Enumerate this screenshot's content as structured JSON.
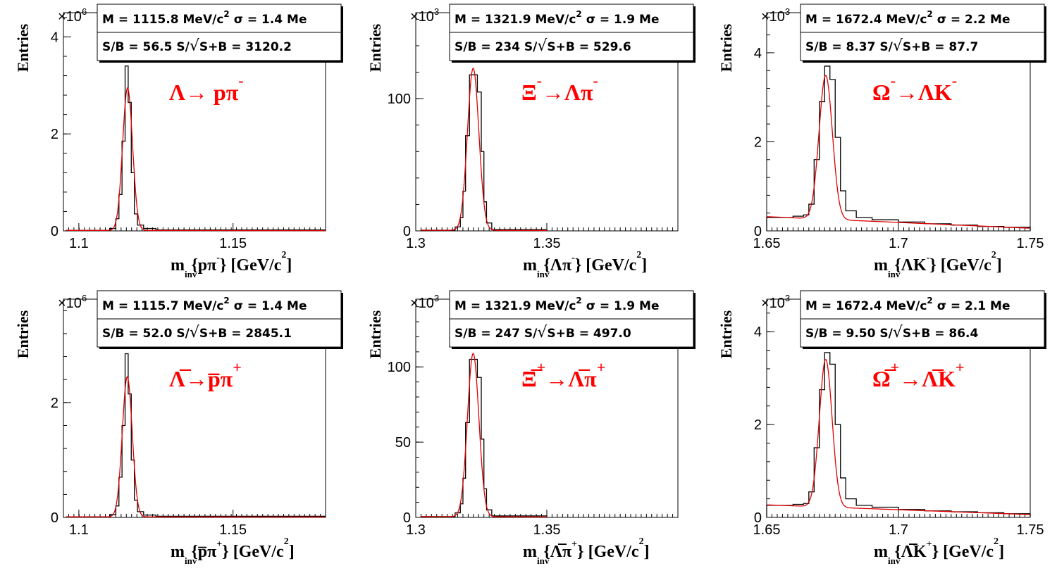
{
  "chart_data": [
    {
      "type": "histogram",
      "ylabel": "Entries",
      "y_multiplier": "×10",
      "y_exponent": "6",
      "xlabel": {
        "main": "m",
        "sub": "inv",
        "body": "{pπ",
        "sup": "-",
        "tail": "} [GeV/c",
        "unit_sup": "2",
        "tail2": "]"
      },
      "title": {
        "main": "Λ→ pπ",
        "sup": "-"
      },
      "stats": {
        "line1_a": "M = 1115.8 MeV/c",
        "line1_sup": "2",
        "line1_b": " σ = 1.4 Me",
        "line2_a": "S/B = 56.5   S/",
        "line2_b": "S+B = 3120.2"
      },
      "xlim": [
        1.095,
        1.18
      ],
      "ylim": [
        0,
        4.5
      ],
      "xticks": [
        1.1,
        1.15
      ],
      "xtick_labels": [
        "1.1",
        "1.15"
      ],
      "yticks": [
        0,
        2,
        4
      ],
      "ytick_labels": [
        "0",
        "2",
        "4"
      ],
      "peak": 1.1158,
      "sigma": 0.0014,
      "hist_peak": 3.4,
      "fit_peak": 2.95,
      "background": [
        0.01,
        0.005
      ],
      "hist_edges": [
        1.096,
        1.11,
        1.112,
        1.113,
        1.114,
        1.115,
        1.116,
        1.117,
        1.118,
        1.119,
        1.121,
        1.125,
        1.18
      ],
      "hist_values": [
        0.01,
        0.05,
        0.25,
        0.75,
        1.85,
        3.4,
        2.65,
        1.2,
        0.35,
        0.12,
        0.05,
        0.02
      ]
    },
    {
      "type": "histogram",
      "ylabel": "Entries",
      "y_multiplier": "×10",
      "y_exponent": "3",
      "xlabel": {
        "main": "m",
        "sub": "inv",
        "body": "{Λπ",
        "sup": "-",
        "tail": "} [GeV/c",
        "unit_sup": "2",
        "tail2": "]"
      },
      "title": {
        "main": "Ξ",
        "sup": "-",
        "main2": "→Λπ",
        "sup2": "-"
      },
      "stats": {
        "line1_a": "M = 1321.9 MeV/c",
        "line1_sup": "2",
        "line1_b": " σ = 1.9 Me",
        "line2_a": "S/B =  234   S/",
        "line2_b": "S+B = 529.6"
      },
      "xlim": [
        1.3,
        1.4
      ],
      "ylim": [
        0,
        165
      ],
      "xticks": [
        1.3,
        1.35
      ],
      "xtick_labels": [
        "1.3",
        "1.35"
      ],
      "yticks": [
        0,
        100
      ],
      "ytick_labels": [
        "0",
        "100"
      ],
      "peak": 1.3219,
      "sigma": 0.0019,
      "hist_peak": 118,
      "fit_peak": 123,
      "background": [
        0.5,
        0.3
      ],
      "hist_edges": [
        1.302,
        1.315,
        1.317,
        1.318,
        1.319,
        1.3205,
        1.322,
        1.3235,
        1.325,
        1.326,
        1.327,
        1.329,
        1.35
      ],
      "hist_values": [
        0.5,
        3,
        10,
        30,
        72,
        118,
        118,
        105,
        60,
        22,
        6,
        1
      ]
    },
    {
      "type": "histogram",
      "ylabel": "Entries",
      "y_multiplier": "×10",
      "y_exponent": "3",
      "xlabel": {
        "main": "m",
        "sub": "inv",
        "body": "{ΛK",
        "sup": "-",
        "tail": "} [GeV/c",
        "unit_sup": "2",
        "tail2": "]"
      },
      "title": {
        "main": "Ω",
        "sup": "-",
        "main2": "→ΛK",
        "sup2": "-"
      },
      "stats": {
        "line1_a": "M = 1672.4 MeV/c",
        "line1_sup": "2",
        "line1_b": " σ = 2.2 Me",
        "line2_a": "S/B = 8.37   S/",
        "line2_b": "S+B = 87.7"
      },
      "xlim": [
        1.65,
        1.75
      ],
      "ylim": [
        0,
        4.9
      ],
      "xticks": [
        1.65,
        1.7,
        1.75
      ],
      "xtick_labels": [
        "1.65",
        "1.7",
        "1.75"
      ],
      "yticks": [
        0,
        2,
        4
      ],
      "ytick_labels": [
        "0",
        "2",
        "4"
      ],
      "peak": 1.6724,
      "sigma": 0.0022,
      "hist_peak": 3.7,
      "fit_peak": 3.55,
      "background": [
        0.32,
        0.06
      ],
      "hist_edges": [
        1.65,
        1.66,
        1.664,
        1.666,
        1.668,
        1.67,
        1.672,
        1.674,
        1.676,
        1.678,
        1.68,
        1.684,
        1.69,
        1.7,
        1.71,
        1.72,
        1.73,
        1.74,
        1.75
      ],
      "hist_values": [
        0.3,
        0.33,
        0.36,
        0.6,
        1.6,
        2.9,
        3.7,
        3.4,
        2.1,
        0.9,
        0.45,
        0.3,
        0.25,
        0.2,
        0.16,
        0.13,
        0.1,
        0.08
      ]
    },
    {
      "type": "histogram",
      "ylabel": "Entries",
      "y_multiplier": "×10",
      "y_exponent": "6",
      "xlabel": {
        "main": "m",
        "sub": "inv",
        "body": "{p̅π",
        "sup": "+",
        "tail": "} [GeV/c",
        "unit_sup": "2",
        "tail2": "]"
      },
      "title": {
        "main": "Λ̅→p̅π",
        "sup": "+"
      },
      "stats": {
        "line1_a": "M = 1115.7 MeV/c",
        "line1_sup": "2",
        "line1_b": " σ = 1.4 Me",
        "line2_a": "S/B = 52.0   S/",
        "line2_b": "S+B = 2845.1"
      },
      "xlim": [
        1.095,
        1.18
      ],
      "ylim": [
        0,
        3.8
      ],
      "xticks": [
        1.1,
        1.15
      ],
      "xtick_labels": [
        "1.1",
        "1.15"
      ],
      "yticks": [
        0,
        2
      ],
      "ytick_labels": [
        "0",
        "2"
      ],
      "peak": 1.1157,
      "sigma": 0.0014,
      "hist_peak": 2.85,
      "fit_peak": 2.45,
      "background": [
        0.01,
        0.005
      ],
      "hist_edges": [
        1.096,
        1.11,
        1.112,
        1.113,
        1.114,
        1.115,
        1.116,
        1.117,
        1.118,
        1.119,
        1.121,
        1.125,
        1.18
      ],
      "hist_values": [
        0.01,
        0.05,
        0.2,
        0.7,
        1.6,
        2.85,
        2.15,
        1.0,
        0.3,
        0.1,
        0.04,
        0.02
      ]
    },
    {
      "type": "histogram",
      "ylabel": "Entries",
      "y_multiplier": "×10",
      "y_exponent": "3",
      "xlabel": {
        "main": "m",
        "sub": "inv",
        "body": "{Λ̅π",
        "sup": "+",
        "tail": "} [GeV/c",
        "unit_sup": "2",
        "tail2": "]"
      },
      "title": {
        "main": "Ξ̅",
        "sup": "+",
        "main2": "→Λ̅π",
        "sup2": "+"
      },
      "stats": {
        "line1_a": "M = 1321.9 MeV/c",
        "line1_sup": "2",
        "line1_b": " σ = 1.9 Me",
        "line2_a": "S/B =  247   S/",
        "line2_b": "S+B = 497.0"
      },
      "xlim": [
        1.3,
        1.4
      ],
      "ylim": [
        0,
        145
      ],
      "xticks": [
        1.3,
        1.35
      ],
      "xtick_labels": [
        "1.3",
        "1.35"
      ],
      "yticks": [
        0,
        50,
        100
      ],
      "ytick_labels": [
        "0",
        "50",
        "100"
      ],
      "peak": 1.3219,
      "sigma": 0.0019,
      "hist_peak": 105,
      "fit_peak": 109,
      "background": [
        0.5,
        0.3
      ],
      "hist_edges": [
        1.302,
        1.315,
        1.317,
        1.318,
        1.319,
        1.3205,
        1.322,
        1.3235,
        1.325,
        1.326,
        1.327,
        1.329,
        1.35
      ],
      "hist_values": [
        0.5,
        3,
        9,
        26,
        63,
        105,
        105,
        93,
        52,
        19,
        5,
        1
      ]
    },
    {
      "type": "histogram",
      "ylabel": "Entries",
      "y_multiplier": "×10",
      "y_exponent": "3",
      "xlabel": {
        "main": "m",
        "sub": "inv",
        "body": "{Λ̅K",
        "sup": "+",
        "tail": "} [GeV/c",
        "unit_sup": "2",
        "tail2": "]"
      },
      "title": {
        "main": "Ω̅",
        "sup": "+",
        "main2": "→Λ̅K",
        "sup2": "+"
      },
      "stats": {
        "line1_a": "M = 1672.4 MeV/c",
        "line1_sup": "2",
        "line1_b": " σ = 2.1 Me",
        "line2_a": "S/B = 9.50   S/",
        "line2_b": "S+B = 86.4"
      },
      "xlim": [
        1.65,
        1.75
      ],
      "ylim": [
        0,
        4.7
      ],
      "xticks": [
        1.65,
        1.7,
        1.75
      ],
      "xtick_labels": [
        "1.65",
        "1.7",
        "1.75"
      ],
      "yticks": [
        0,
        2,
        4
      ],
      "ytick_labels": [
        "0",
        "2",
        "4"
      ],
      "peak": 1.6724,
      "sigma": 0.0021,
      "hist_peak": 3.55,
      "fit_peak": 3.45,
      "background": [
        0.27,
        0.06
      ],
      "hist_edges": [
        1.65,
        1.66,
        1.664,
        1.666,
        1.668,
        1.67,
        1.672,
        1.674,
        1.676,
        1.678,
        1.68,
        1.684,
        1.69,
        1.7,
        1.71,
        1.72,
        1.73,
        1.74,
        1.75
      ],
      "hist_values": [
        0.26,
        0.28,
        0.3,
        0.55,
        1.5,
        2.75,
        3.55,
        3.3,
        2.0,
        0.85,
        0.4,
        0.26,
        0.22,
        0.17,
        0.14,
        0.12,
        0.1,
        0.08
      ]
    }
  ]
}
